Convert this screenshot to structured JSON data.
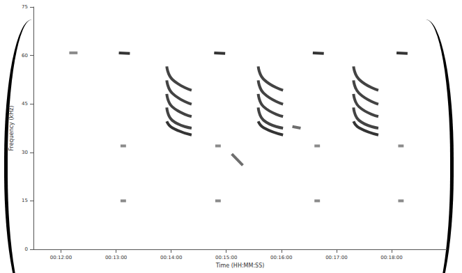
{
  "chart_data": {
    "type": "line",
    "xlabel": "Time (HH:MM:SS)",
    "ylabel": "Frequency (kHz)",
    "xlim": [
      11.5,
      19.0
    ],
    "xticks": [
      {
        "value": 12,
        "label": "00:12:00"
      },
      {
        "value": 13,
        "label": "00:13:00"
      },
      {
        "value": 14,
        "label": "00:14:00"
      },
      {
        "value": 15,
        "label": "00:15:00"
      },
      {
        "value": 16,
        "label": "00:16:00"
      },
      {
        "value": 17,
        "label": "00:17:00"
      },
      {
        "value": 18,
        "label": "00:18:00"
      }
    ],
    "ylim": [
      0,
      75
    ],
    "yticks": [
      0,
      15,
      30,
      45,
      60,
      75
    ],
    "grid": false,
    "series": [
      {
        "color": "#777777",
        "x": [
          12.15,
          12.3
        ],
        "values": [
          60.8,
          60.8
        ]
      },
      {
        "color": "#111111",
        "x": [
          13.05,
          13.25
        ],
        "values": [
          60.8,
          60.6
        ]
      },
      {
        "color": "#777777",
        "x": [
          13.08,
          13.18
        ],
        "values": [
          32.0,
          32.0
        ]
      },
      {
        "color": "#777777",
        "x": [
          13.08,
          13.18
        ],
        "values": [
          15.0,
          15.0
        ]
      },
      {
        "color": "#222222",
        "x": [
          13.92,
          14.02,
          14.37
        ],
        "values": [
          56.6,
          52.6,
          49.2
        ]
      },
      {
        "color": "#222222",
        "x": [
          13.92,
          14.02,
          14.37
        ],
        "values": [
          52.3,
          48.3,
          44.9
        ]
      },
      {
        "color": "#222222",
        "x": [
          13.92,
          14.02,
          14.37
        ],
        "values": [
          48.1,
          44.1,
          41.1
        ]
      },
      {
        "color": "#222222",
        "x": [
          13.92,
          14.02,
          14.37
        ],
        "values": [
          43.9,
          39.9,
          37.5
        ]
      },
      {
        "color": "#111111",
        "x": [
          13.92,
          14.02,
          14.37
        ],
        "values": [
          39.6,
          37.6,
          35.4
        ]
      },
      {
        "color": "#111111",
        "x": [
          14.78,
          14.98
        ],
        "values": [
          60.8,
          60.6
        ]
      },
      {
        "color": "#777777",
        "x": [
          14.8,
          14.9
        ],
        "values": [
          32.0,
          32.0
        ]
      },
      {
        "color": "#777777",
        "x": [
          14.8,
          14.9
        ],
        "values": [
          15.0,
          15.0
        ]
      },
      {
        "color": "#555555",
        "x": [
          15.1,
          15.3
        ],
        "values": [
          29.5,
          26.0
        ]
      },
      {
        "color": "#222222",
        "x": [
          15.58,
          15.68,
          16.03
        ],
        "values": [
          56.6,
          52.6,
          49.2
        ]
      },
      {
        "color": "#222222",
        "x": [
          15.58,
          15.68,
          16.03
        ],
        "values": [
          52.3,
          48.3,
          44.9
        ]
      },
      {
        "color": "#222222",
        "x": [
          15.58,
          15.68,
          16.03
        ],
        "values": [
          48.1,
          44.1,
          41.1
        ]
      },
      {
        "color": "#222222",
        "x": [
          15.58,
          15.68,
          16.03
        ],
        "values": [
          43.9,
          39.9,
          37.5
        ]
      },
      {
        "color": "#111111",
        "x": [
          15.58,
          15.68,
          16.03
        ],
        "values": [
          39.6,
          37.6,
          35.4
        ]
      },
      {
        "color": "#555555",
        "x": [
          16.2,
          16.35
        ],
        "values": [
          38.0,
          37.5
        ]
      },
      {
        "color": "#111111",
        "x": [
          16.57,
          16.77
        ],
        "values": [
          60.8,
          60.6
        ]
      },
      {
        "color": "#777777",
        "x": [
          16.6,
          16.7
        ],
        "values": [
          32.0,
          32.0
        ]
      },
      {
        "color": "#777777",
        "x": [
          16.6,
          16.7
        ],
        "values": [
          15.0,
          15.0
        ]
      },
      {
        "color": "#222222",
        "x": [
          17.31,
          17.41,
          17.76
        ],
        "values": [
          56.6,
          52.6,
          49.2
        ]
      },
      {
        "color": "#222222",
        "x": [
          17.31,
          17.41,
          17.76
        ],
        "values": [
          52.3,
          48.3,
          44.9
        ]
      },
      {
        "color": "#222222",
        "x": [
          17.31,
          17.41,
          17.76
        ],
        "values": [
          48.1,
          44.1,
          41.1
        ]
      },
      {
        "color": "#222222",
        "x": [
          17.31,
          17.41,
          17.76
        ],
        "values": [
          43.9,
          39.9,
          37.5
        ]
      },
      {
        "color": "#111111",
        "x": [
          17.31,
          17.41,
          17.76
        ],
        "values": [
          39.6,
          37.6,
          35.4
        ]
      },
      {
        "color": "#111111",
        "x": [
          18.09,
          18.29
        ],
        "values": [
          60.8,
          60.6
        ]
      },
      {
        "color": "#777777",
        "x": [
          18.12,
          18.22
        ],
        "values": [
          32.0,
          32.0
        ]
      },
      {
        "color": "#777777",
        "x": [
          18.12,
          18.22
        ],
        "values": [
          15.0,
          15.0
        ]
      }
    ]
  }
}
